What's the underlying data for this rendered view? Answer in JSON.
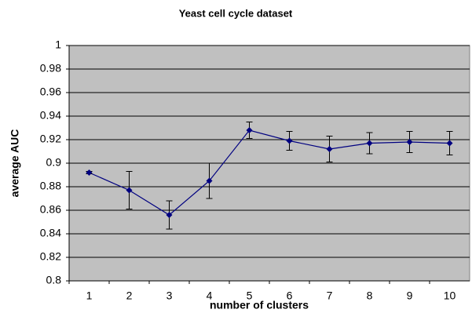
{
  "chart_data": {
    "type": "line",
    "title": "Yeast cell cycle dataset",
    "x_label": "number of clusters",
    "y_label": "average AUC",
    "categories": [
      "1",
      "2",
      "3",
      "4",
      "5",
      "6",
      "7",
      "8",
      "9",
      "10"
    ],
    "series": [
      {
        "name": "average AUC",
        "color": "#000080",
        "values": [
          0.892,
          0.877,
          0.856,
          0.885,
          0.928,
          0.919,
          0.912,
          0.917,
          0.918,
          0.917
        ],
        "errors": [
          0.001,
          0.016,
          0.012,
          0.015,
          0.007,
          0.008,
          0.011,
          0.009,
          0.009,
          0.01
        ]
      }
    ],
    "ylim": [
      0.8,
      1
    ],
    "yticks": [
      0.8,
      0.82,
      0.84,
      0.86,
      0.88,
      0.9,
      0.92,
      0.94,
      0.96,
      0.98,
      1
    ],
    "grid": true,
    "plot_background": "#c0c0c0"
  }
}
